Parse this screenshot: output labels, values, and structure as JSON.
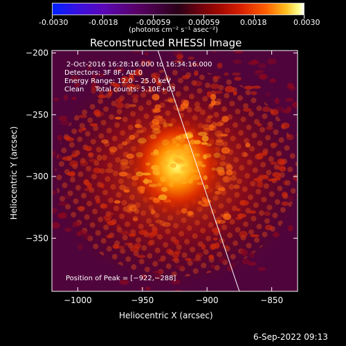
{
  "colorbar": {
    "min": -0.003,
    "max": 0.003,
    "tick_labels": [
      "-0.0030",
      "-0.0018",
      "-0.00059",
      "0.00059",
      "0.0018",
      "0.0030"
    ],
    "units_label": "(photons cm⁻² s⁻¹ asec⁻²)"
  },
  "chart_data": {
    "type": "heatmap",
    "title": "Reconstructed RHESSI Image",
    "xlabel": "Heliocentric X (arcsec)",
    "ylabel": "Heliocentric Y (arcsec)",
    "xlim": [
      -1020,
      -830
    ],
    "ylim": [
      -393,
      -198
    ],
    "xticks": [
      -1000,
      -950,
      -900,
      -850
    ],
    "yticks": [
      -200,
      -250,
      -300,
      -350
    ],
    "xtick_labels": [
      "−1000",
      "−950",
      "−900",
      "−850"
    ],
    "ytick_labels": [
      "−200",
      "−250",
      "−300",
      "−350"
    ],
    "peak": [
      -922,
      -288
    ],
    "annotations": [
      "2-Oct-2016 16:28:16.000 to 16:34:16.000",
      "Detectors: 3F 8F, Att 0",
      "Energy Range: 12.0 – 25.0 keV",
      "Clean     Total counts: 5.10E+03"
    ],
    "peak_label": "Position of Peak = [−922,−288]",
    "limb_line": [
      [
        -938,
        -198
      ],
      [
        -875,
        -393
      ]
    ]
  },
  "footer": {
    "timestamp": "6-Sep-2022 09:13"
  }
}
